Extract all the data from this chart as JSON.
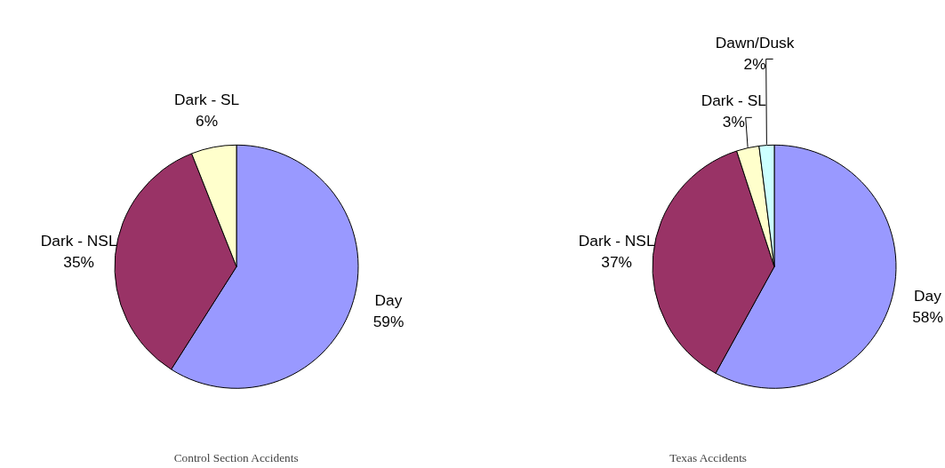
{
  "chart_data": [
    {
      "type": "pie",
      "title": "Control Section Accidents",
      "categories": [
        "Day",
        "Dark - NSL",
        "Dark - SL"
      ],
      "values": [
        59,
        35,
        6
      ],
      "value_labels": [
        "59%",
        "35%",
        "6%"
      ],
      "colors": [
        "#9999ff",
        "#993366",
        "#ffffcc"
      ]
    },
    {
      "type": "pie",
      "title": "Texas Accidents",
      "categories": [
        "Day",
        "Dark - NSL",
        "Dark - SL",
        "Dawn/Dusk"
      ],
      "values": [
        58,
        37,
        3,
        2
      ],
      "value_labels": [
        "58%",
        "37%",
        "3%",
        "2%"
      ],
      "colors": [
        "#9999ff",
        "#993366",
        "#ffffcc",
        "#ccffff"
      ]
    }
  ]
}
